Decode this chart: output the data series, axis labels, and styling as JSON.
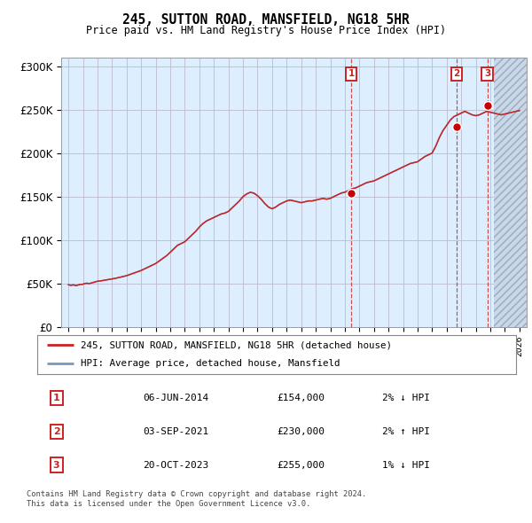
{
  "title": "245, SUTTON ROAD, MANSFIELD, NG18 5HR",
  "subtitle": "Price paid vs. HM Land Registry's House Price Index (HPI)",
  "legend_line1": "245, SUTTON ROAD, MANSFIELD, NG18 5HR (detached house)",
  "legend_line2": "HPI: Average price, detached house, Mansfield",
  "footer1": "Contains HM Land Registry data © Crown copyright and database right 2024.",
  "footer2": "This data is licensed under the Open Government Licence v3.0.",
  "transactions": [
    {
      "num": 1,
      "date": "06-JUN-2014",
      "price": 154000,
      "pct": "2%",
      "dir": "↓",
      "year_x": 2014.44
    },
    {
      "num": 2,
      "date": "03-SEP-2021",
      "price": 230000,
      "pct": "2%",
      "dir": "↑",
      "year_x": 2021.67
    },
    {
      "num": 3,
      "date": "20-OCT-2023",
      "price": 255000,
      "pct": "1%",
      "dir": "↓",
      "year_x": 2023.8
    }
  ],
  "xlim": [
    1994.5,
    2026.5
  ],
  "ylim": [
    0,
    310000
  ],
  "yticks": [
    0,
    50000,
    100000,
    150000,
    200000,
    250000,
    300000
  ],
  "ytick_labels": [
    "£0",
    "£50K",
    "£100K",
    "£150K",
    "£200K",
    "£250K",
    "£300K"
  ],
  "hpi_color": "#7799bb",
  "price_color": "#cc2222",
  "dot_color": "#cc0000",
  "bg_color": "#ddeeff",
  "future_bg_color": "#c8d8e8",
  "grid_color": "#bbbbcc",
  "vline_color": "#cc3333",
  "box_color": "#cc2222",
  "future_cutoff": 2024.25,
  "hpi_years": [
    1995.0,
    1995.08,
    1995.17,
    1995.25,
    1995.33,
    1995.42,
    1995.5,
    1995.58,
    1995.67,
    1995.75,
    1995.83,
    1995.92,
    1996.0,
    1996.08,
    1996.17,
    1996.25,
    1996.33,
    1996.42,
    1996.5,
    1996.58,
    1996.67,
    1996.75,
    1996.83,
    1996.92,
    1997.0,
    1997.25,
    1997.5,
    1997.75,
    1998.0,
    1998.25,
    1998.5,
    1998.75,
    1999.0,
    1999.25,
    1999.5,
    1999.75,
    2000.0,
    2000.25,
    2000.5,
    2000.75,
    2001.0,
    2001.25,
    2001.5,
    2001.75,
    2002.0,
    2002.25,
    2002.5,
    2002.75,
    2003.0,
    2003.25,
    2003.5,
    2003.75,
    2004.0,
    2004.25,
    2004.5,
    2004.75,
    2005.0,
    2005.25,
    2005.5,
    2005.75,
    2006.0,
    2006.25,
    2006.5,
    2006.75,
    2007.0,
    2007.25,
    2007.5,
    2007.75,
    2008.0,
    2008.25,
    2008.5,
    2008.75,
    2009.0,
    2009.25,
    2009.5,
    2009.75,
    2010.0,
    2010.25,
    2010.5,
    2010.75,
    2011.0,
    2011.25,
    2011.5,
    2011.75,
    2012.0,
    2012.25,
    2012.5,
    2012.75,
    2013.0,
    2013.25,
    2013.5,
    2013.75,
    2014.0,
    2014.25,
    2014.5,
    2014.75,
    2015.0,
    2015.25,
    2015.5,
    2015.75,
    2016.0,
    2016.25,
    2016.5,
    2016.75,
    2017.0,
    2017.25,
    2017.5,
    2017.75,
    2018.0,
    2018.25,
    2018.5,
    2018.75,
    2019.0,
    2019.25,
    2019.5,
    2019.75,
    2020.0,
    2020.25,
    2020.5,
    2020.75,
    2021.0,
    2021.25,
    2021.5,
    2021.75,
    2022.0,
    2022.25,
    2022.5,
    2022.75,
    2023.0,
    2023.25,
    2023.5,
    2023.75,
    2024.0,
    2024.25,
    2024.5,
    2024.75,
    2025.0,
    2025.25,
    2025.5,
    2025.75,
    2026.0
  ],
  "hpi_prices": [
    48500,
    48200,
    47800,
    48100,
    48400,
    48000,
    47500,
    47800,
    48200,
    48600,
    49000,
    48800,
    49200,
    49500,
    50000,
    50300,
    50100,
    49800,
    50200,
    50500,
    51000,
    51400,
    51800,
    52200,
    52500,
    53000,
    53800,
    54500,
    55200,
    56000,
    57000,
    58000,
    59000,
    60500,
    62000,
    63500,
    65000,
    67000,
    69000,
    71000,
    73000,
    76000,
    79000,
    82000,
    86000,
    90000,
    94000,
    96000,
    98000,
    102000,
    106000,
    110000,
    115000,
    119000,
    122000,
    124000,
    126000,
    128000,
    130000,
    131000,
    133000,
    137000,
    141000,
    145000,
    150000,
    153000,
    155000,
    154000,
    151000,
    147000,
    142000,
    138000,
    136000,
    138000,
    141000,
    143000,
    145000,
    146000,
    145000,
    144000,
    143000,
    144000,
    145000,
    145000,
    146000,
    147000,
    148000,
    147000,
    148000,
    150000,
    152000,
    154000,
    155000,
    157000,
    159000,
    160000,
    162000,
    164000,
    166000,
    167000,
    168000,
    170000,
    172000,
    174000,
    176000,
    178000,
    180000,
    182000,
    184000,
    186000,
    188000,
    189000,
    190000,
    193000,
    196000,
    198000,
    200000,
    208000,
    218000,
    226000,
    232000,
    238000,
    242000,
    244000,
    246000,
    248000,
    246000,
    244000,
    243000,
    244000,
    246000,
    248000,
    247000,
    246000,
    245000,
    244000,
    245000,
    246000,
    247000,
    248000,
    249000
  ]
}
